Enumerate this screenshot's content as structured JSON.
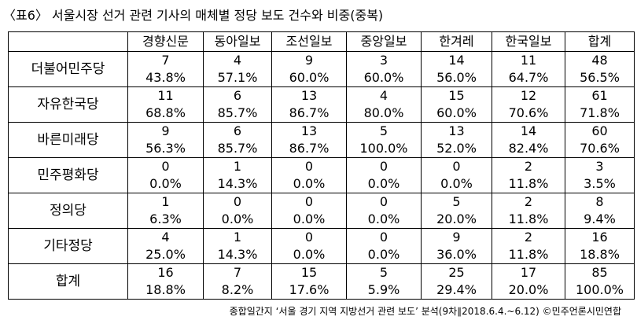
{
  "title": "〈표6〉 서울시장 선거 관련 기사의 매체별 정당 보도 건수와 비중(중복)",
  "table": {
    "columns": [
      "경향신문",
      "동아일보",
      "조선일보",
      "중앙일보",
      "한겨레",
      "한국일보",
      "합계"
    ],
    "rows": [
      {
        "label": "더불어민주당",
        "counts": [
          7,
          4,
          9,
          3,
          14,
          11,
          48
        ],
        "percents": [
          "43.8%",
          "57.1%",
          "60.0%",
          "60.0%",
          "56.0%",
          "64.7%",
          "56.5%"
        ]
      },
      {
        "label": "자유한국당",
        "counts": [
          11,
          6,
          13,
          4,
          15,
          12,
          61
        ],
        "percents": [
          "68.8%",
          "85.7%",
          "86.7%",
          "80.0%",
          "60.0%",
          "70.6%",
          "71.8%"
        ]
      },
      {
        "label": "바른미래당",
        "counts": [
          9,
          6,
          13,
          5,
          13,
          14,
          60
        ],
        "percents": [
          "56.3%",
          "85.7%",
          "86.7%",
          "100.0%",
          "52.0%",
          "82.4%",
          "70.6%"
        ]
      },
      {
        "label": "민주평화당",
        "counts": [
          0,
          1,
          0,
          0,
          0,
          2,
          3
        ],
        "percents": [
          "0.0%",
          "14.3%",
          "0.0%",
          "0.0%",
          "0.0%",
          "11.8%",
          "3.5%"
        ]
      },
      {
        "label": "정의당",
        "counts": [
          1,
          0,
          0,
          0,
          5,
          2,
          8
        ],
        "percents": [
          "6.3%",
          "0.0%",
          "0.0%",
          "0.0%",
          "20.0%",
          "11.8%",
          "9.4%"
        ]
      },
      {
        "label": "기타정당",
        "counts": [
          4,
          1,
          0,
          0,
          9,
          2,
          16
        ],
        "percents": [
          "25.0%",
          "14.3%",
          "0.0%",
          "0.0%",
          "36.0%",
          "11.8%",
          "18.8%"
        ]
      },
      {
        "label": "합계",
        "counts": [
          16,
          7,
          15,
          5,
          25,
          17,
          85
        ],
        "percents": [
          "18.8%",
          "8.2%",
          "17.6%",
          "5.9%",
          "29.4%",
          "20.0%",
          "100.0%"
        ]
      }
    ]
  },
  "footer": "종합일간지 ‘서울 경기 지역 지방선거 관련 보도’ 분석(9차∥2018.6.4.~6.12) ©민주언론시민연합"
}
